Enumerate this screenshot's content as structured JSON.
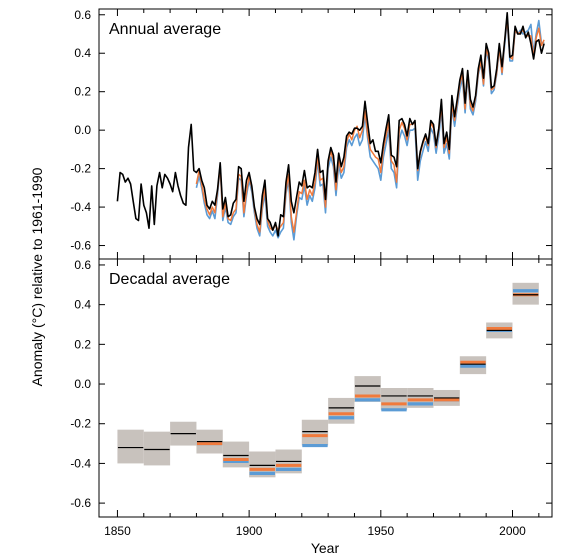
{
  "chart_data": [
    {
      "type": "line",
      "panel_title": "Annual average",
      "ylabel": "Anomaly (°C) relative to 1961-1990",
      "xlabel": "",
      "xlim": [
        1843,
        2015
      ],
      "ylim": [
        -0.67,
        0.63
      ],
      "y_ticks": [
        "-0.6",
        "-0.4",
        "-0.2",
        "0.0",
        "0.2",
        "0.4",
        "0.6"
      ],
      "y_tick_values": [
        -0.6,
        -0.4,
        -0.2,
        0.0,
        0.2,
        0.4,
        0.6
      ],
      "grid": false,
      "legend": "none",
      "series": [
        {
          "color": "#000000",
          "x": [
            1850,
            1851,
            1852,
            1853,
            1854,
            1855,
            1856,
            1857,
            1858,
            1859,
            1860,
            1861,
            1862,
            1863,
            1864,
            1865,
            1866,
            1867,
            1868,
            1869,
            1870,
            1871,
            1872,
            1873,
            1874,
            1875,
            1876,
            1877,
            1878,
            1879,
            1880,
            1881,
            1882,
            1883,
            1884,
            1885,
            1886,
            1887,
            1888,
            1889,
            1890,
            1891,
            1892,
            1893,
            1894,
            1895,
            1896,
            1897,
            1898,
            1899,
            1900,
            1901,
            1902,
            1903,
            1904,
            1905,
            1906,
            1907,
            1908,
            1909,
            1910,
            1911,
            1912,
            1913,
            1914,
            1915,
            1916,
            1917,
            1918,
            1919,
            1920,
            1921,
            1922,
            1923,
            1924,
            1925,
            1926,
            1927,
            1928,
            1929,
            1930,
            1931,
            1932,
            1933,
            1934,
            1935,
            1936,
            1937,
            1938,
            1939,
            1940,
            1941,
            1942,
            1943,
            1944,
            1945,
            1946,
            1947,
            1948,
            1949,
            1950,
            1951,
            1952,
            1953,
            1954,
            1955,
            1956,
            1957,
            1958,
            1959,
            1960,
            1961,
            1962,
            1963,
            1964,
            1965,
            1966,
            1967,
            1968,
            1969,
            1970,
            1971,
            1972,
            1973,
            1974,
            1975,
            1976,
            1977,
            1978,
            1979,
            1980,
            1981,
            1982,
            1983,
            1984,
            1985,
            1986,
            1987,
            1988,
            1989,
            1990,
            1991,
            1992,
            1993,
            1994,
            1995,
            1996,
            1997,
            1998,
            1999,
            2000,
            2001,
            2002,
            2003,
            2004,
            2005,
            2006,
            2007,
            2008,
            2009,
            2010,
            2011,
            2012
          ],
          "values": [
            -0.37,
            -0.22,
            -0.23,
            -0.27,
            -0.25,
            -0.28,
            -0.37,
            -0.46,
            -0.47,
            -0.28,
            -0.39,
            -0.43,
            -0.51,
            -0.29,
            -0.49,
            -0.29,
            -0.22,
            -0.3,
            -0.23,
            -0.25,
            -0.28,
            -0.32,
            -0.22,
            -0.29,
            -0.34,
            -0.38,
            -0.39,
            -0.09,
            0.03,
            -0.21,
            -0.22,
            -0.2,
            -0.26,
            -0.3,
            -0.39,
            -0.41,
            -0.37,
            -0.39,
            -0.31,
            -0.17,
            -0.41,
            -0.35,
            -0.45,
            -0.44,
            -0.38,
            -0.36,
            -0.19,
            -0.2,
            -0.37,
            -0.26,
            -0.22,
            -0.29,
            -0.4,
            -0.46,
            -0.49,
            -0.34,
            -0.26,
            -0.46,
            -0.48,
            -0.52,
            -0.48,
            -0.55,
            -0.44,
            -0.45,
            -0.27,
            -0.18,
            -0.37,
            -0.43,
            -0.35,
            -0.27,
            -0.29,
            -0.21,
            -0.3,
            -0.29,
            -0.3,
            -0.22,
            -0.1,
            -0.22,
            -0.21,
            -0.36,
            -0.16,
            -0.09,
            -0.13,
            -0.27,
            -0.12,
            -0.19,
            -0.14,
            -0.03,
            -0.01,
            -0.02,
            0.01,
            0.01,
            0.0,
            0.02,
            0.15,
            0.04,
            -0.07,
            -0.05,
            -0.11,
            -0.11,
            -0.17,
            -0.07,
            0.01,
            0.08,
            -0.13,
            -0.14,
            -0.19,
            0.05,
            0.06,
            0.03,
            -0.03,
            0.06,
            0.03,
            0.05,
            -0.2,
            -0.11,
            -0.06,
            -0.02,
            -0.07,
            0.05,
            0.03,
            -0.08,
            0.01,
            0.16,
            -0.07,
            -0.01,
            -0.1,
            0.18,
            0.07,
            0.16,
            0.26,
            0.32,
            0.14,
            0.31,
            0.16,
            0.12,
            0.18,
            0.32,
            0.39,
            0.27,
            0.45,
            0.4,
            0.22,
            0.23,
            0.32,
            0.45,
            0.33,
            0.46,
            0.61,
            0.38,
            0.39,
            0.54,
            0.5,
            0.5,
            0.54,
            0.48,
            0.51,
            0.45,
            0.37,
            0.46,
            0.47,
            0.4,
            0.45
          ]
        },
        {
          "color": "#f07a3c",
          "x": [
            1880,
            1881,
            1882,
            1883,
            1884,
            1885,
            1886,
            1887,
            1888,
            1889,
            1890,
            1891,
            1892,
            1893,
            1894,
            1895,
            1896,
            1897,
            1898,
            1899,
            1900,
            1901,
            1902,
            1903,
            1904,
            1905,
            1906,
            1907,
            1908,
            1909,
            1910,
            1911,
            1912,
            1913,
            1914,
            1915,
            1916,
            1917,
            1918,
            1919,
            1920,
            1921,
            1922,
            1923,
            1924,
            1925,
            1926,
            1927,
            1928,
            1929,
            1930,
            1931,
            1932,
            1933,
            1934,
            1935,
            1936,
            1937,
            1938,
            1939,
            1940,
            1941,
            1942,
            1943,
            1944,
            1945,
            1946,
            1947,
            1948,
            1949,
            1950,
            1951,
            1952,
            1953,
            1954,
            1955,
            1956,
            1957,
            1958,
            1959,
            1960,
            1961,
            1962,
            1963,
            1964,
            1965,
            1966,
            1967,
            1968,
            1969,
            1970,
            1971,
            1972,
            1973,
            1974,
            1975,
            1976,
            1977,
            1978,
            1979,
            1980,
            1981,
            1982,
            1983,
            1984,
            1985,
            1986,
            1987,
            1988,
            1989,
            1990,
            1991,
            1992,
            1993,
            1994,
            1995,
            1996,
            1997,
            1998,
            1999,
            2000,
            2001,
            2002,
            2003,
            2004,
            2005,
            2006,
            2007,
            2008,
            2009,
            2010,
            2011,
            2012
          ],
          "values": [
            -0.28,
            -0.21,
            -0.28,
            -0.36,
            -0.41,
            -0.44,
            -0.4,
            -0.43,
            -0.32,
            -0.19,
            -0.45,
            -0.38,
            -0.46,
            -0.47,
            -0.43,
            -0.41,
            -0.23,
            -0.24,
            -0.43,
            -0.32,
            -0.24,
            -0.3,
            -0.41,
            -0.49,
            -0.53,
            -0.39,
            -0.3,
            -0.47,
            -0.51,
            -0.52,
            -0.49,
            -0.52,
            -0.5,
            -0.48,
            -0.31,
            -0.23,
            -0.45,
            -0.53,
            -0.43,
            -0.32,
            -0.33,
            -0.26,
            -0.36,
            -0.31,
            -0.34,
            -0.27,
            -0.13,
            -0.26,
            -0.25,
            -0.4,
            -0.17,
            -0.11,
            -0.16,
            -0.31,
            -0.15,
            -0.22,
            -0.19,
            -0.06,
            -0.02,
            -0.05,
            0.0,
            0.02,
            -0.04,
            0.0,
            0.1,
            -0.02,
            -0.1,
            -0.12,
            -0.14,
            -0.15,
            -0.22,
            -0.1,
            -0.03,
            0.04,
            -0.16,
            -0.18,
            -0.27,
            0.0,
            0.04,
            0.01,
            -0.05,
            0.03,
            0.03,
            0.04,
            -0.21,
            -0.12,
            -0.07,
            -0.03,
            -0.08,
            0.04,
            0.01,
            -0.09,
            0.0,
            0.13,
            -0.09,
            -0.04,
            -0.12,
            0.14,
            0.05,
            0.14,
            0.24,
            0.29,
            0.11,
            0.3,
            0.13,
            0.1,
            0.17,
            0.3,
            0.36,
            0.24,
            0.42,
            0.38,
            0.21,
            0.22,
            0.3,
            0.43,
            0.3,
            0.46,
            0.58,
            0.38,
            0.37,
            0.52,
            0.5,
            0.51,
            0.52,
            0.49,
            0.49,
            0.49,
            0.38,
            0.48,
            0.53,
            0.44,
            0.47
          ]
        },
        {
          "color": "#5b9bd5",
          "x": [
            1880,
            1881,
            1882,
            1883,
            1884,
            1885,
            1886,
            1887,
            1888,
            1889,
            1890,
            1891,
            1892,
            1893,
            1894,
            1895,
            1896,
            1897,
            1898,
            1899,
            1900,
            1901,
            1902,
            1903,
            1904,
            1905,
            1906,
            1907,
            1908,
            1909,
            1910,
            1911,
            1912,
            1913,
            1914,
            1915,
            1916,
            1917,
            1918,
            1919,
            1920,
            1921,
            1922,
            1923,
            1924,
            1925,
            1926,
            1927,
            1928,
            1929,
            1930,
            1931,
            1932,
            1933,
            1934,
            1935,
            1936,
            1937,
            1938,
            1939,
            1940,
            1941,
            1942,
            1943,
            1944,
            1945,
            1946,
            1947,
            1948,
            1949,
            1950,
            1951,
            1952,
            1953,
            1954,
            1955,
            1956,
            1957,
            1958,
            1959,
            1960,
            1961,
            1962,
            1963,
            1964,
            1965,
            1966,
            1967,
            1968,
            1969,
            1970,
            1971,
            1972,
            1973,
            1974,
            1975,
            1976,
            1977,
            1978,
            1979,
            1980,
            1981,
            1982,
            1983,
            1984,
            1985,
            1986,
            1987,
            1988,
            1989,
            1990,
            1991,
            1992,
            1993,
            1994,
            1995,
            1996,
            1997,
            1998,
            1999,
            2000,
            2001,
            2002,
            2003,
            2004,
            2005,
            2006,
            2007,
            2008,
            2009,
            2010,
            2011,
            2012
          ],
          "values": [
            -0.3,
            -0.24,
            -0.3,
            -0.38,
            -0.44,
            -0.46,
            -0.42,
            -0.46,
            -0.34,
            -0.18,
            -0.47,
            -0.4,
            -0.48,
            -0.49,
            -0.45,
            -0.43,
            -0.25,
            -0.26,
            -0.45,
            -0.34,
            -0.26,
            -0.32,
            -0.43,
            -0.51,
            -0.55,
            -0.41,
            -0.33,
            -0.5,
            -0.53,
            -0.55,
            -0.52,
            -0.56,
            -0.53,
            -0.51,
            -0.33,
            -0.26,
            -0.48,
            -0.57,
            -0.45,
            -0.35,
            -0.36,
            -0.29,
            -0.39,
            -0.34,
            -0.37,
            -0.3,
            -0.16,
            -0.29,
            -0.28,
            -0.43,
            -0.2,
            -0.14,
            -0.19,
            -0.34,
            -0.18,
            -0.25,
            -0.22,
            -0.09,
            -0.05,
            -0.08,
            -0.04,
            -0.02,
            -0.08,
            -0.05,
            0.08,
            -0.04,
            -0.14,
            -0.16,
            -0.18,
            -0.2,
            -0.26,
            -0.14,
            -0.07,
            0.0,
            -0.2,
            -0.22,
            -0.3,
            -0.05,
            0.0,
            -0.03,
            -0.08,
            0.0,
            0.0,
            0.01,
            -0.26,
            -0.16,
            -0.11,
            -0.06,
            -0.11,
            0.01,
            -0.02,
            -0.12,
            -0.03,
            0.1,
            -0.12,
            -0.07,
            -0.15,
            0.12,
            0.02,
            0.12,
            0.21,
            0.27,
            0.09,
            0.28,
            0.11,
            0.08,
            0.15,
            0.29,
            0.35,
            0.23,
            0.41,
            0.36,
            0.19,
            0.21,
            0.29,
            0.43,
            0.29,
            0.44,
            0.57,
            0.36,
            0.36,
            0.52,
            0.5,
            0.52,
            0.5,
            0.51,
            0.52,
            0.55,
            0.4,
            0.5,
            0.57,
            0.45,
            0.46
          ]
        }
      ]
    },
    {
      "type": "bar",
      "panel_title": "Decadal average",
      "xlabel": "Year",
      "ylabel": "Anomaly (°C) relative to 1961-1990",
      "xlim": [
        1843,
        2015
      ],
      "ylim": [
        -0.67,
        0.63
      ],
      "x_ticks": [
        "1850",
        "1900",
        "1950",
        "2000"
      ],
      "x_tick_values": [
        1850,
        1900,
        1950,
        2000
      ],
      "y_ticks": [
        "-0.6",
        "-0.4",
        "-0.2",
        "0.0",
        "0.2",
        "0.4",
        "0.6"
      ],
      "y_tick_values": [
        -0.6,
        -0.4,
        -0.2,
        0.0,
        0.2,
        0.4,
        0.6
      ],
      "grid": false,
      "legend": "none",
      "categories": [
        "1850-1859",
        "1860-1869",
        "1870-1879",
        "1880-1889",
        "1890-1899",
        "1900-1909",
        "1910-1919",
        "1920-1929",
        "1930-1939",
        "1940-1949",
        "1950-1959",
        "1960-1969",
        "1970-1979",
        "1980-1989",
        "1990-1999",
        "2000-2009"
      ],
      "decade_start": [
        1850,
        1860,
        1870,
        1880,
        1890,
        1900,
        1910,
        1920,
        1930,
        1940,
        1950,
        1960,
        1970,
        1980,
        1990,
        2000
      ],
      "series": [
        {
          "color": "#000000",
          "values": [
            -0.32,
            -0.33,
            -0.25,
            -0.29,
            -0.36,
            -0.41,
            -0.39,
            -0.24,
            -0.12,
            -0.01,
            -0.06,
            -0.06,
            -0.07,
            0.1,
            0.27,
            0.45
          ]
        },
        {
          "color": "#f07a3c",
          "values": [
            null,
            null,
            null,
            -0.3,
            -0.38,
            -0.43,
            -0.41,
            -0.26,
            -0.15,
            -0.06,
            -0.1,
            -0.08,
            -0.08,
            0.11,
            0.28,
            0.45
          ]
        },
        {
          "color": "#5b9bd5",
          "values": [
            null,
            null,
            null,
            -0.3,
            -0.39,
            -0.45,
            -0.43,
            -0.31,
            -0.17,
            -0.08,
            -0.13,
            -0.1,
            -0.08,
            0.09,
            0.27,
            0.47
          ]
        },
        {
          "color": "#c8c2bd",
          "role": "uncertainty_low",
          "values": [
            -0.4,
            -0.41,
            -0.31,
            -0.35,
            -0.42,
            -0.47,
            -0.45,
            -0.31,
            -0.2,
            -0.09,
            -0.13,
            -0.12,
            -0.11,
            0.05,
            0.23,
            0.4
          ]
        },
        {
          "color": "#c8c2bd",
          "role": "uncertainty_high",
          "values": [
            -0.23,
            -0.24,
            -0.19,
            -0.23,
            -0.29,
            -0.34,
            -0.33,
            -0.18,
            -0.07,
            0.04,
            -0.02,
            -0.02,
            -0.03,
            0.14,
            0.31,
            0.51
          ]
        }
      ]
    }
  ]
}
